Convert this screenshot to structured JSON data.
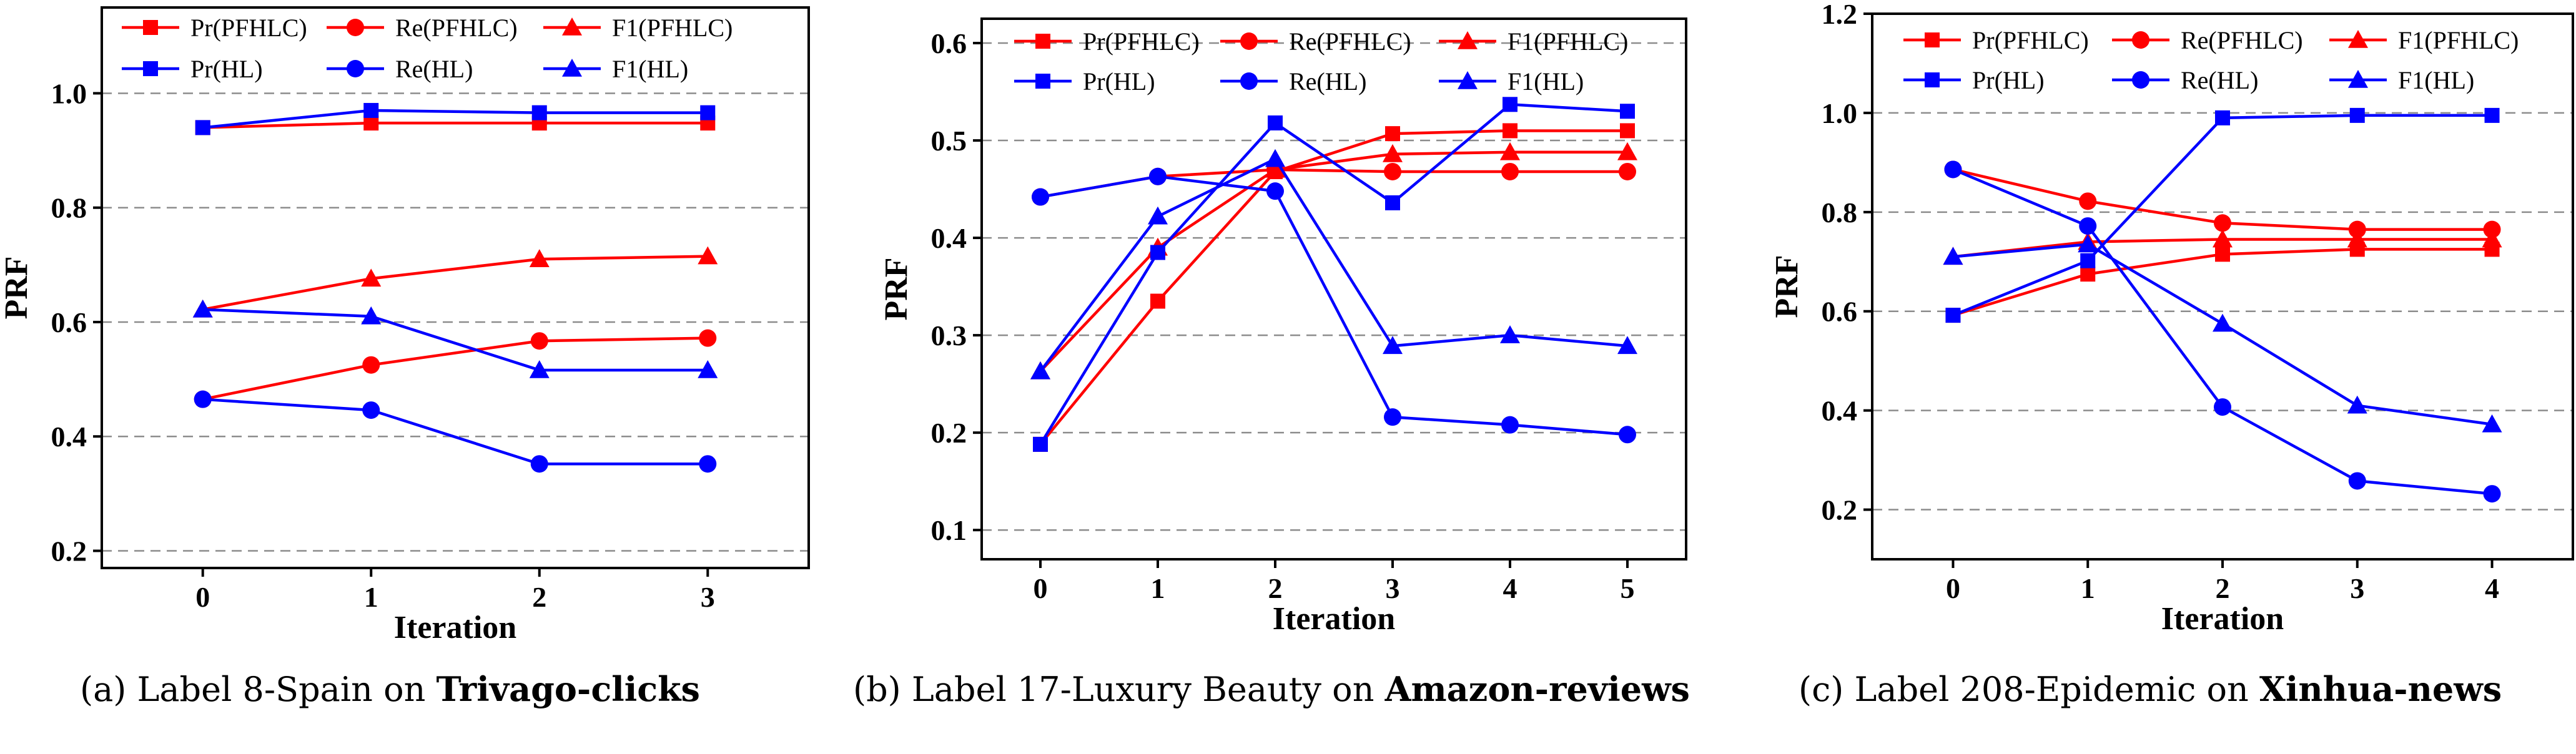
{
  "colors": {
    "pfhlc": "#ff0000",
    "hl": "#0000ff",
    "grid": "#8c8c8c"
  },
  "chart_data": [
    {
      "type": "line",
      "xlabel": "Iteration",
      "ylabel": "PRF",
      "x": [
        0,
        1,
        2,
        3
      ],
      "xlim": [
        -0.6,
        3.6
      ],
      "ylim": [
        0.17,
        1.15
      ],
      "yticks": [
        "0.2",
        "0.4",
        "0.6",
        "0.8",
        "1.0"
      ],
      "xticks": [
        "0",
        "1",
        "2",
        "3"
      ],
      "grid": "horizontal dashed",
      "legend_position": "top",
      "series": [
        {
          "name": "Pr(PFHLC)",
          "group": "pfhlc",
          "marker": "square",
          "values": [
            0.94,
            0.948,
            0.948,
            0.948
          ]
        },
        {
          "name": "Re(PFHLC)",
          "group": "pfhlc",
          "marker": "circle",
          "values": [
            0.465,
            0.525,
            0.567,
            0.572
          ]
        },
        {
          "name": "F1(PFHLC)",
          "group": "pfhlc",
          "marker": "triangle",
          "values": [
            0.622,
            0.676,
            0.71,
            0.715
          ]
        },
        {
          "name": "Pr(HL)",
          "group": "hl",
          "marker": "square",
          "values": [
            0.94,
            0.97,
            0.966,
            0.966
          ]
        },
        {
          "name": "Re(HL)",
          "group": "hl",
          "marker": "circle",
          "values": [
            0.465,
            0.446,
            0.352,
            0.352
          ]
        },
        {
          "name": "F1(HL)",
          "group": "hl",
          "marker": "triangle",
          "values": [
            0.622,
            0.61,
            0.516,
            0.516
          ]
        }
      ]
    },
    {
      "type": "line",
      "xlabel": "Iteration",
      "ylabel": "PRF",
      "x": [
        0,
        1,
        2,
        3,
        4,
        5
      ],
      "xlim": [
        -0.5,
        5.5
      ],
      "ylim": [
        0.07,
        0.625
      ],
      "yticks": [
        "0.1",
        "0.2",
        "0.3",
        "0.4",
        "0.5",
        "0.6"
      ],
      "xticks": [
        "0",
        "1",
        "2",
        "3",
        "4",
        "5"
      ],
      "grid": "horizontal dashed",
      "legend_position": "top",
      "series": [
        {
          "name": "Pr(PFHLC)",
          "group": "pfhlc",
          "marker": "square",
          "values": [
            0.188,
            0.335,
            0.468,
            0.507,
            0.51,
            0.51
          ]
        },
        {
          "name": "Re(PFHLC)",
          "group": "pfhlc",
          "marker": "circle",
          "values": [
            0.442,
            0.463,
            0.47,
            0.468,
            0.468,
            0.468
          ]
        },
        {
          "name": "F1(PFHLC)",
          "group": "pfhlc",
          "marker": "triangle",
          "values": [
            0.263,
            0.39,
            0.47,
            0.486,
            0.488,
            0.488
          ]
        },
        {
          "name": "Pr(HL)",
          "group": "hl",
          "marker": "square",
          "values": [
            0.188,
            0.385,
            0.518,
            0.436,
            0.537,
            0.53
          ]
        },
        {
          "name": "Re(HL)",
          "group": "hl",
          "marker": "circle",
          "values": [
            0.442,
            0.463,
            0.448,
            0.216,
            0.208,
            0.198
          ]
        },
        {
          "name": "F1(HL)",
          "group": "hl",
          "marker": "triangle",
          "values": [
            0.263,
            0.422,
            0.481,
            0.289,
            0.3,
            0.289
          ]
        }
      ]
    },
    {
      "type": "line",
      "xlabel": "Iteration",
      "ylabel": "PRF",
      "x": [
        0,
        1,
        2,
        3,
        4
      ],
      "xlim": [
        -0.6,
        4.6
      ],
      "ylim": [
        0.1,
        1.2
      ],
      "yticks": [
        "0.2",
        "0.4",
        "0.6",
        "0.8",
        "1.0",
        "1.2"
      ],
      "xticks": [
        "0",
        "1",
        "2",
        "3",
        "4"
      ],
      "grid": "horizontal dashed",
      "legend_position": "top",
      "series": [
        {
          "name": "Pr(PFHLC)",
          "group": "pfhlc",
          "marker": "square",
          "values": [
            0.592,
            0.675,
            0.715,
            0.725,
            0.725
          ]
        },
        {
          "name": "Re(PFHLC)",
          "group": "pfhlc",
          "marker": "circle",
          "values": [
            0.886,
            0.822,
            0.778,
            0.765,
            0.765
          ]
        },
        {
          "name": "F1(PFHLC)",
          "group": "pfhlc",
          "marker": "triangle",
          "values": [
            0.71,
            0.74,
            0.745,
            0.745,
            0.745
          ]
        },
        {
          "name": "Pr(HL)",
          "group": "hl",
          "marker": "square",
          "values": [
            0.592,
            0.702,
            0.99,
            0.995,
            0.995
          ]
        },
        {
          "name": "Re(HL)",
          "group": "hl",
          "marker": "circle",
          "values": [
            0.886,
            0.772,
            0.407,
            0.258,
            0.232
          ]
        },
        {
          "name": "F1(HL)",
          "group": "hl",
          "marker": "triangle",
          "values": [
            0.71,
            0.735,
            0.575,
            0.41,
            0.372
          ]
        }
      ]
    }
  ],
  "captions": [
    {
      "prefix": "(a) Label 8-Spain on ",
      "bold": "Trivago-clicks"
    },
    {
      "prefix": "(b) Label 17-Luxury Beauty on ",
      "bold": "Amazon-reviews"
    },
    {
      "prefix": "(c) Label 208-Epidemic on ",
      "bold": "Xinhua-news"
    }
  ]
}
